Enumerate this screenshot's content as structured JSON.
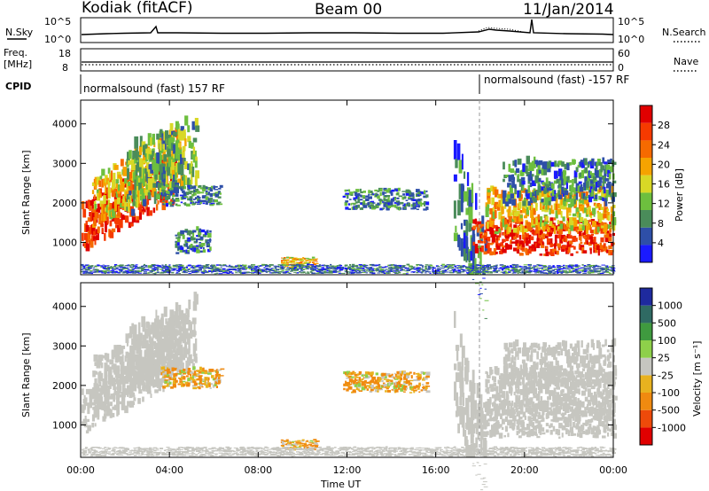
{
  "header": {
    "station": "Kodiak (fitACF)",
    "beam": "Beam 00",
    "date": "11/Jan/2014"
  },
  "summary_panels": {
    "nsky_label": "N.Sky",
    "nsearch_label": "N.Search",
    "nsky_ticks": [
      "10^5",
      "10^0"
    ],
    "nsearch_ticks": [
      "10^5",
      "10^0"
    ],
    "freq_label_line1": "Freq.",
    "freq_label_line2": "[MHz]",
    "freq_ticks": [
      "18",
      "8"
    ],
    "nave_label": "Nave",
    "nave_ticks": [
      "60",
      "0"
    ],
    "cpid_label": "CPID",
    "cpid_segments": [
      {
        "text": "normalsound (fast) 157 RF",
        "start_hour": 0
      },
      {
        "text": "normalsound (fast) -157 RF",
        "start_hour": 18
      }
    ]
  },
  "colors": {
    "power": [
      "#1a1aff",
      "#2e4fa8",
      "#4a8c5a",
      "#6dbf3e",
      "#d8d826",
      "#f5a300",
      "#f56a00",
      "#f53a00",
      "#e00000"
    ],
    "velocity": [
      "#1e2a9e",
      "#2f6a63",
      "#3f9a3f",
      "#8ed04a",
      "#c6c6c0",
      "#e8b21f",
      "#f08a10",
      "#ee4a0a",
      "#e00000"
    ]
  },
  "chart_data": [
    {
      "type": "heatmap",
      "name": "Power",
      "ylabel": "Slant Range [km]",
      "xlabel": "",
      "colorbar_label": "Power [dB]",
      "colorbar_ticks": [
        "28",
        "24",
        "20",
        "16",
        "12",
        "8",
        "4"
      ],
      "colorbar_range": [
        0,
        32
      ],
      "y_ticks": [
        "1000",
        "2000",
        "3000",
        "4000"
      ],
      "ylim": [
        180,
        4600
      ],
      "xlim": [
        0,
        24
      ],
      "x_ticks": [
        "00:00",
        "04:00",
        "08:00",
        "12:00",
        "16:00",
        "20:00",
        "00:00"
      ],
      "regions": [
        {
          "t0": 0.0,
          "t1": 4.2,
          "r0": 700,
          "r1": 1900,
          "slope": 320,
          "value": 28
        },
        {
          "t0": 0.5,
          "t1": 4.6,
          "r0": 1300,
          "r1": 2600,
          "slope": 300,
          "value": 18
        },
        {
          "t0": 2.0,
          "t1": 5.2,
          "r0": 1600,
          "r1": 3300,
          "slope": 200,
          "value": 12
        },
        {
          "t0": 3.6,
          "t1": 6.3,
          "r0": 1900,
          "r1": 2400,
          "slope": 0,
          "value": 8
        },
        {
          "t0": 4.2,
          "t1": 5.8,
          "r0": 700,
          "r1": 1300,
          "slope": 0,
          "value": 8
        },
        {
          "t0": 9.0,
          "t1": 10.6,
          "r0": 350,
          "r1": 600,
          "slope": 0,
          "value": 18
        },
        {
          "t0": 11.8,
          "t1": 15.6,
          "r0": 1800,
          "r1": 2300,
          "slope": 0,
          "value": 8
        },
        {
          "t0": 16.8,
          "t1": 18.2,
          "r0": 1000,
          "r1": 3500,
          "slope": -600,
          "value": 8
        },
        {
          "t0": 17.6,
          "t1": 24.0,
          "r0": 650,
          "r1": 1500,
          "slope": 0,
          "value": 28
        },
        {
          "t0": 18.2,
          "t1": 24.0,
          "r0": 1200,
          "r1": 2300,
          "slope": 0,
          "value": 18
        },
        {
          "t0": 19.0,
          "t1": 24.0,
          "r0": 1900,
          "r1": 3000,
          "slope": 0,
          "value": 8
        },
        {
          "t0": 0.0,
          "t1": 24.0,
          "r0": 200,
          "r1": 420,
          "slope": 0,
          "value": 6
        }
      ]
    },
    {
      "type": "heatmap",
      "name": "Velocity",
      "ylabel": "Slant Range [km]",
      "xlabel": "Time UT",
      "colorbar_label": "Velocity [m s⁻¹]",
      "colorbar_ticks": [
        "1000",
        "500",
        "100",
        "25",
        "-25",
        "-100",
        "-500",
        "-1000"
      ],
      "y_ticks": [
        "1000",
        "2000",
        "3000",
        "4000"
      ],
      "ylim": [
        180,
        4600
      ],
      "xlim": [
        0,
        24
      ],
      "x_ticks": [
        "00:00",
        "04:00",
        "08:00",
        "12:00",
        "16:00",
        "20:00",
        "00:00"
      ],
      "regions": [
        {
          "t0": 0.0,
          "t1": 4.2,
          "r0": 700,
          "r1": 1900,
          "slope": 320,
          "value": 0
        },
        {
          "t0": 0.5,
          "t1": 4.6,
          "r0": 1300,
          "r1": 2600,
          "slope": 300,
          "value": 0
        },
        {
          "t0": 2.0,
          "t1": 5.2,
          "r0": 1600,
          "r1": 3300,
          "slope": 200,
          "value": 0
        },
        {
          "t0": 3.6,
          "t1": 6.3,
          "r0": 1900,
          "r1": 2400,
          "slope": 0,
          "value": -100
        },
        {
          "t0": 9.0,
          "t1": 10.6,
          "r0": 350,
          "r1": 600,
          "slope": 0,
          "value": -100
        },
        {
          "t0": 11.8,
          "t1": 15.6,
          "r0": 1800,
          "r1": 2300,
          "slope": 0,
          "value": -100
        },
        {
          "t0": 16.8,
          "t1": 18.2,
          "r0": 1000,
          "r1": 3500,
          "slope": -600,
          "value": 0
        },
        {
          "t0": 17.6,
          "t1": 24.0,
          "r0": 650,
          "r1": 1500,
          "slope": 0,
          "value": 0
        },
        {
          "t0": 18.2,
          "t1": 24.0,
          "r0": 1200,
          "r1": 2300,
          "slope": 0,
          "value": 0
        },
        {
          "t0": 19.0,
          "t1": 24.0,
          "r0": 1900,
          "r1": 3000,
          "slope": 0,
          "value": 0
        },
        {
          "t0": 0.0,
          "t1": 24.0,
          "r0": 200,
          "r1": 420,
          "slope": 0,
          "value": 0
        }
      ]
    }
  ]
}
